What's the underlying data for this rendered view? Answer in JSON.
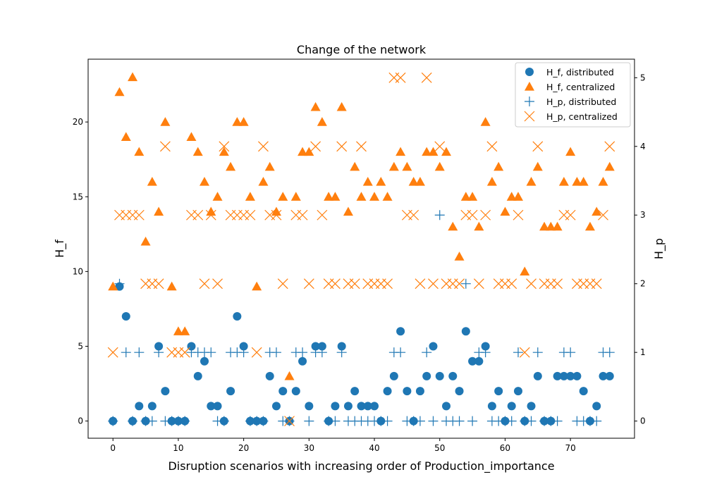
{
  "chart_data": {
    "type": "scatter",
    "title": "Change of the network",
    "xlabel": "Disruption scenarios with increasing order of Production_importance",
    "ylabel_left": "H_f",
    "ylabel_right": "H_p",
    "xlim": [
      -3.8,
      79.8
    ],
    "ylim_left": [
      -1.15,
      24.2
    ],
    "ylim_right": [
      -0.25,
      5.27
    ],
    "x_ticks": [
      0,
      10,
      20,
      30,
      40,
      50,
      60,
      70
    ],
    "y_left_ticks": [
      0,
      5,
      10,
      15,
      20
    ],
    "y_right_ticks": [
      0,
      1,
      2,
      3,
      4,
      5
    ],
    "grid": false,
    "legend_position": "top-right",
    "colors": {
      "distributed": "#1f77b4",
      "centralized": "#ff7f0e"
    },
    "series": [
      {
        "name": "H_f, distributed",
        "marker": "circle",
        "axis": "left",
        "color": "#1f77b4",
        "values": [
          0,
          9,
          7,
          0,
          1,
          0,
          1,
          5,
          2,
          0,
          0,
          0,
          5,
          3,
          4,
          1,
          1,
          0,
          2,
          7,
          5,
          0,
          0,
          0,
          3,
          1,
          2,
          0,
          2,
          4,
          1,
          5,
          5,
          0,
          1,
          5,
          1,
          2,
          1,
          1,
          1,
          0,
          2,
          3,
          6,
          2,
          0,
          2,
          3,
          5,
          3,
          1,
          3,
          2,
          6,
          4,
          4,
          5,
          1,
          2,
          0,
          1,
          2,
          0,
          1,
          3,
          0,
          0,
          3,
          3,
          3,
          3,
          2,
          0,
          1,
          3,
          3
        ]
      },
      {
        "name": "H_f, centralized",
        "marker": "triangle",
        "axis": "left",
        "color": "#ff7f0e",
        "values": [
          9,
          22,
          19,
          23,
          18,
          12,
          16,
          14,
          20,
          9,
          6,
          6,
          19,
          18,
          16,
          14,
          15,
          18,
          17,
          20,
          20,
          15,
          9,
          16,
          17,
          14,
          15,
          3,
          15,
          18,
          18,
          21,
          20,
          15,
          15,
          21,
          14,
          17,
          15,
          16,
          15,
          16,
          15,
          17,
          18,
          17,
          16,
          16,
          18,
          18,
          17,
          18,
          13,
          11,
          15,
          15,
          13,
          20,
          16,
          17,
          14,
          15,
          15,
          10,
          16,
          17,
          13,
          13,
          13,
          16,
          18,
          16,
          16,
          13,
          14,
          16,
          17
        ]
      },
      {
        "name": "H_p, distributed",
        "marker": "plus",
        "axis": "right",
        "color": "#1f77b4",
        "values": [
          0,
          2,
          1,
          0,
          1,
          0,
          0,
          1,
          0,
          0,
          0,
          0,
          1,
          1,
          1,
          1,
          0,
          0,
          1,
          1,
          1,
          0,
          0,
          0,
          1,
          1,
          0,
          0,
          1,
          1,
          0,
          1,
          1,
          0,
          0,
          1,
          0,
          0,
          0,
          0,
          0,
          0,
          0,
          1,
          1,
          0,
          0,
          0,
          1,
          0,
          3,
          0,
          0,
          0,
          2,
          0,
          1,
          1,
          0,
          0,
          0,
          0,
          1,
          0,
          0,
          1,
          0,
          0,
          0,
          1,
          1,
          0,
          0,
          0,
          0,
          1,
          1
        ]
      },
      {
        "name": "H_p, centralized",
        "marker": "x",
        "axis": "right",
        "color": "#ff7f0e",
        "values": [
          1,
          3,
          3,
          3,
          3,
          2,
          2,
          2,
          4,
          1,
          1,
          1,
          3,
          3,
          2,
          3,
          2,
          4,
          3,
          3,
          3,
          3,
          1,
          4,
          3,
          3,
          2,
          0,
          3,
          3,
          2,
          4,
          3,
          2,
          2,
          4,
          2,
          2,
          4,
          2,
          2,
          2,
          2,
          5,
          5,
          3,
          3,
          2,
          5,
          2,
          4,
          2,
          2,
          2,
          3,
          3,
          2,
          3,
          4,
          2,
          2,
          2,
          3,
          1,
          2,
          4,
          2,
          2,
          2,
          3,
          3,
          2,
          2,
          2,
          2,
          3,
          4
        ]
      }
    ]
  }
}
